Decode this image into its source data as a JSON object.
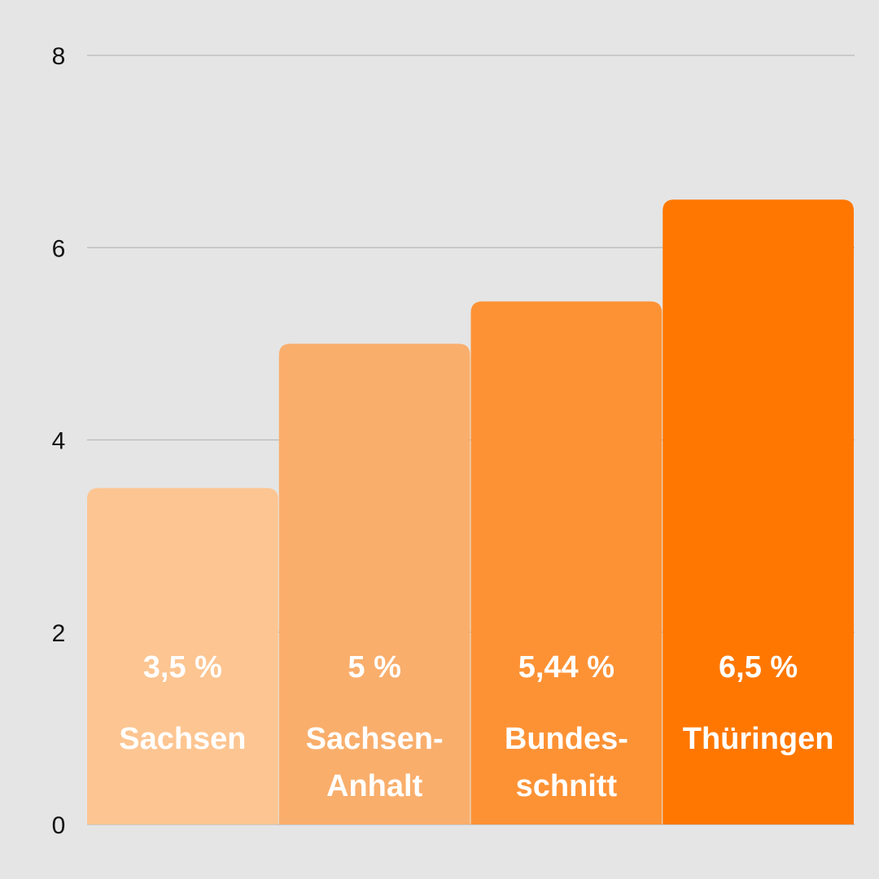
{
  "chart_data": {
    "type": "bar",
    "categories": [
      [
        "Sachsen"
      ],
      [
        "Sachsen-",
        "Anhalt"
      ],
      [
        "Bundes-",
        "schnitt"
      ],
      [
        "Thüringen"
      ]
    ],
    "values": [
      3.5,
      5,
      5.44,
      6.5
    ],
    "value_labels": [
      "3,5 %",
      "5 %",
      "5,44 %",
      "6,5 %"
    ],
    "colors": [
      "#fdc591",
      "#f9ae6c",
      "#fd9235",
      "#ff7700"
    ],
    "yticks": [
      "0",
      "2",
      "4",
      "6",
      "8"
    ],
    "ylim": [
      0,
      8
    ],
    "grid": true,
    "title": "",
    "xlabel": "",
    "ylabel": ""
  }
}
